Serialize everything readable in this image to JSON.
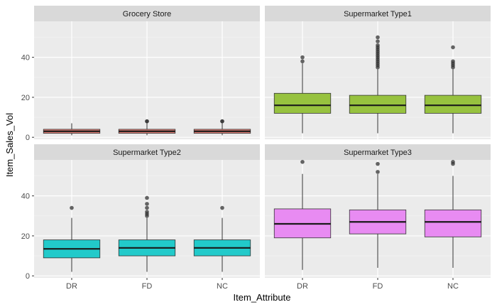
{
  "chart_data": {
    "type": "boxplot",
    "xlabel": "Item_Attribute",
    "ylabel": "Item_Sales_Vol",
    "categories": [
      "DR",
      "FD",
      "NC"
    ],
    "y_ticks": [
      0,
      20,
      40
    ],
    "ylim": [
      -1,
      58
    ],
    "grid": true,
    "facets": [
      {
        "title": "Grocery Store",
        "color": "#E8837A",
        "boxes": [
          {
            "category": "DR",
            "min": 1,
            "q1": 2,
            "median": 3,
            "q3": 4,
            "max": 7,
            "outliers": []
          },
          {
            "category": "FD",
            "min": 1,
            "q1": 2,
            "median": 3,
            "q3": 4,
            "max": 7,
            "outliers": [
              8,
              8
            ]
          },
          {
            "category": "NC",
            "min": 1,
            "q1": 2,
            "median": 3,
            "q3": 4,
            "max": 7,
            "outliers": [
              8,
              8
            ]
          }
        ]
      },
      {
        "title": "Supermarket Type1",
        "color": "#97C23F",
        "boxes": [
          {
            "category": "DR",
            "min": 2,
            "q1": 12,
            "median": 16,
            "q3": 22,
            "max": 37,
            "outliers": [
              38,
              40
            ]
          },
          {
            "category": "FD",
            "min": 2,
            "q1": 12,
            "median": 16,
            "q3": 21,
            "max": 34,
            "outliers": [
              35,
              36,
              37,
              38,
              39,
              40,
              41,
              42,
              43,
              44,
              45,
              46,
              48,
              50
            ]
          },
          {
            "category": "NC",
            "min": 2,
            "q1": 12,
            "median": 16,
            "q3": 21,
            "max": 34,
            "outliers": [
              35,
              36,
              37,
              38,
              45
            ]
          }
        ]
      },
      {
        "title": "Supermarket Type2",
        "color": "#22CACA",
        "boxes": [
          {
            "category": "DR",
            "min": 2,
            "q1": 9,
            "median": 13.5,
            "q3": 18,
            "max": 29,
            "outliers": [
              34
            ]
          },
          {
            "category": "FD",
            "min": 2,
            "q1": 10,
            "median": 14,
            "q3": 18,
            "max": 29,
            "outliers": [
              30,
              31,
              32,
              34,
              36,
              39
            ]
          },
          {
            "category": "NC",
            "min": 2,
            "q1": 10,
            "median": 14,
            "q3": 18,
            "max": 29,
            "outliers": [
              34
            ]
          }
        ]
      },
      {
        "title": "Supermarket Type3",
        "color": "#E88BF2",
        "boxes": [
          {
            "category": "DR",
            "min": 3,
            "q1": 19,
            "median": 26,
            "q3": 33.5,
            "max": 51,
            "outliers": [
              57
            ]
          },
          {
            "category": "FD",
            "min": 4,
            "q1": 21,
            "median": 27,
            "q3": 33,
            "max": 51,
            "outliers": [
              52,
              56
            ]
          },
          {
            "category": "NC",
            "min": 4,
            "q1": 19.5,
            "median": 27,
            "q3": 33,
            "max": 50,
            "outliers": [
              56,
              57
            ]
          }
        ]
      }
    ]
  }
}
